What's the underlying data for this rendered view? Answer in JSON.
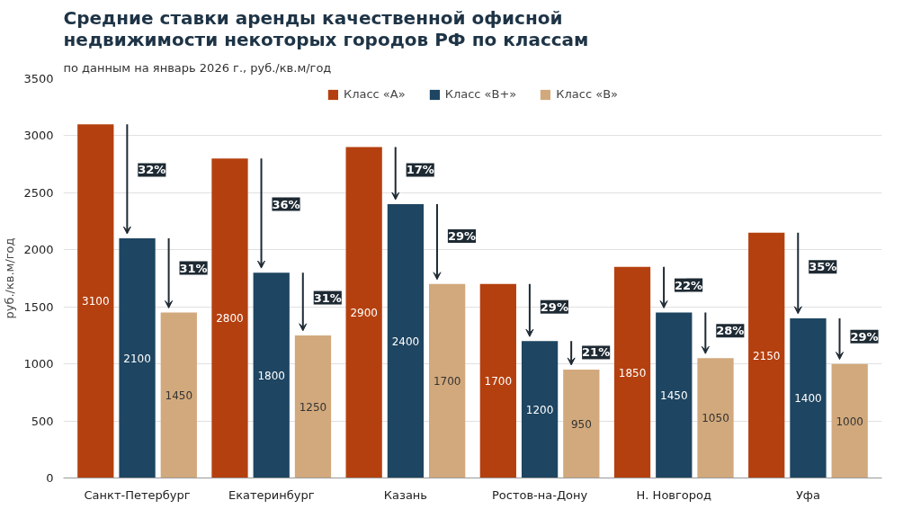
{
  "chart_data": {
    "type": "bar",
    "title": "Средние ставки аренды качественной офисной\nнедвижимости некоторых городов РФ по классам",
    "subtitle": "по данным на январь 2026 г., руб./кв.м/год",
    "ylabel": "руб./кв.м/год",
    "categories": [
      "Санкт-Петербург",
      "Екатеринбург",
      "Казань",
      "Ростов-на-Дону",
      "Н. Новгород",
      "Уфа"
    ],
    "series": [
      {
        "name": "Класс «А»",
        "color": "#b5400f",
        "values": [
          3100,
          2800,
          2900,
          1700,
          1850,
          2150
        ]
      },
      {
        "name": "Класс «В+»",
        "color": "#1e4561",
        "values": [
          2100,
          1800,
          2400,
          1200,
          1450,
          1400
        ]
      },
      {
        "name": "Класс «В»",
        "color": "#d2a97c",
        "values": [
          1450,
          1250,
          1700,
          950,
          1050,
          1000
        ]
      }
    ],
    "ylim": [
      0,
      3500
    ],
    "yticks": [
      0,
      500,
      1000,
      1500,
      2000,
      2500,
      3000,
      3500
    ],
    "grid": "y",
    "legend": "top",
    "data_labels": true,
    "annotations": [
      "32%",
      "31%",
      "36%",
      "31%",
      "17%",
      "29%",
      "29%",
      "21%",
      "22%",
      "28%",
      "35%",
      "29%"
    ]
  }
}
